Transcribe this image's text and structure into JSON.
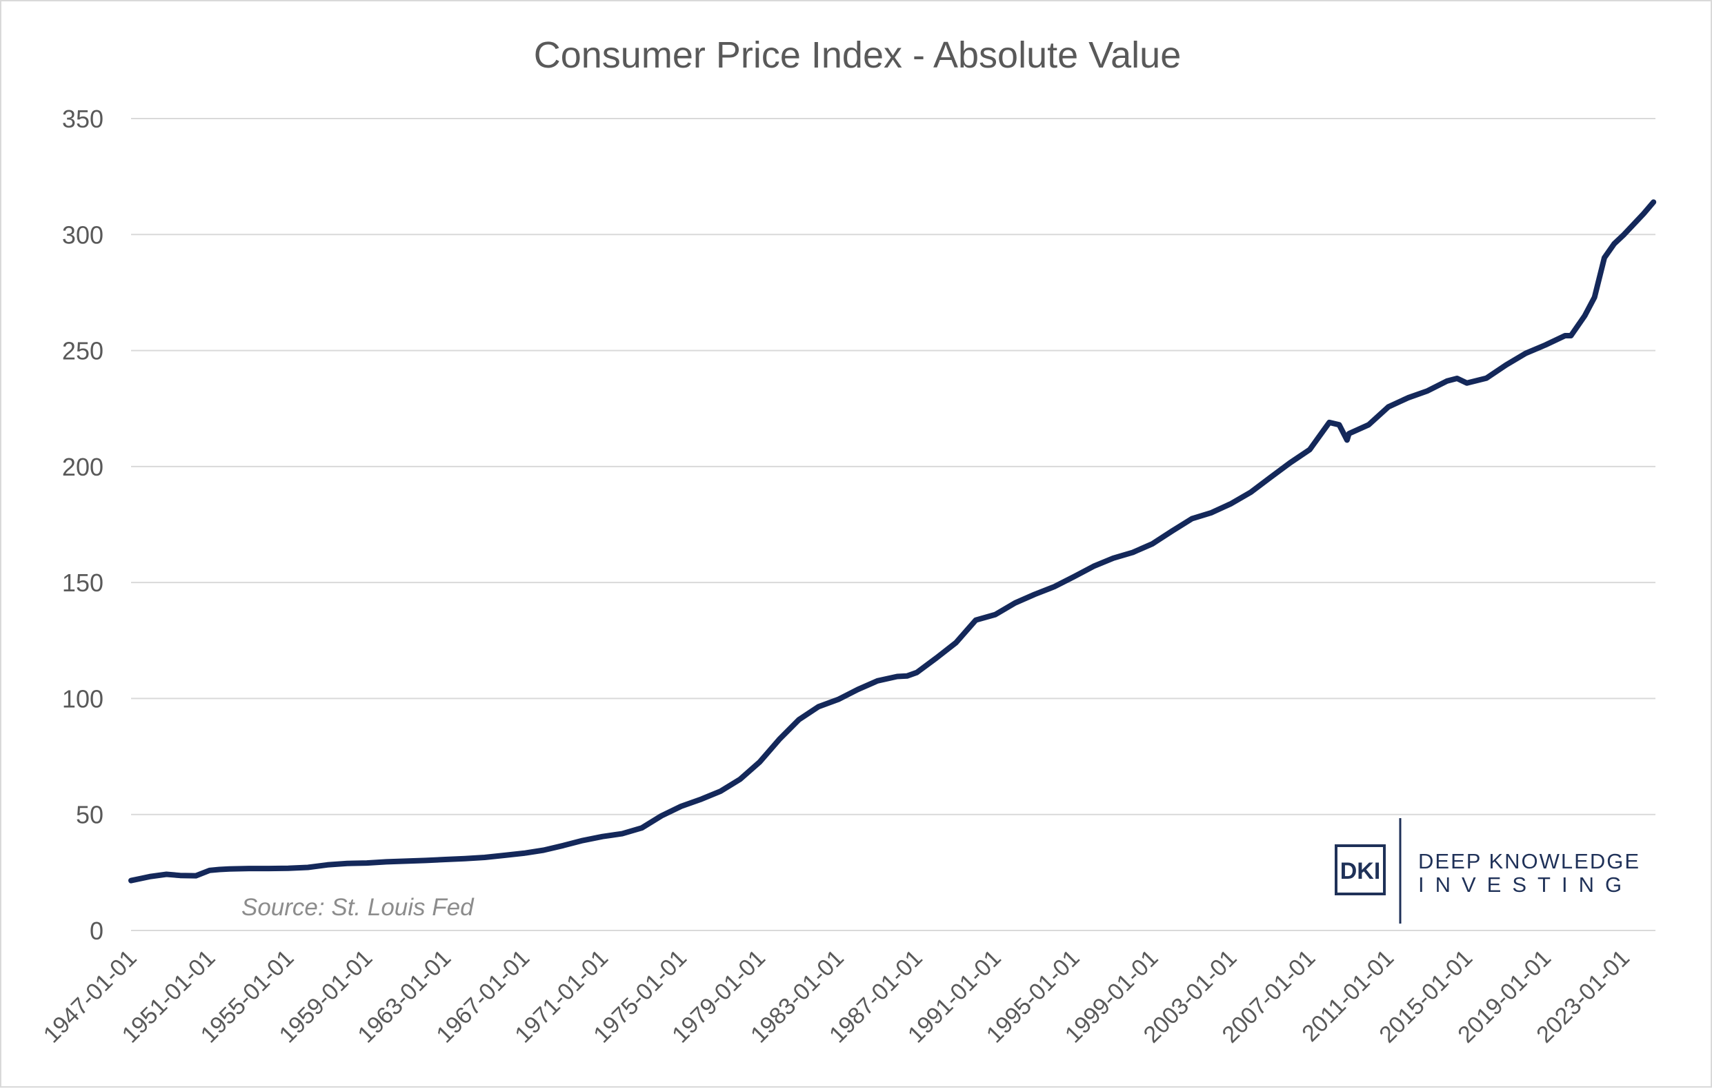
{
  "chart_data": {
    "type": "line",
    "title": "Consumer Price Index - Absolute Value",
    "xlabel": "",
    "ylabel": "",
    "ylim": [
      0,
      350
    ],
    "yticks": [
      0,
      50,
      100,
      150,
      200,
      250,
      300,
      350
    ],
    "xtick_labels": [
      "1947-01-01",
      "1951-01-01",
      "1955-01-01",
      "1959-01-01",
      "1963-01-01",
      "1967-01-01",
      "1971-01-01",
      "1975-01-01",
      "1979-01-01",
      "1983-01-01",
      "1987-01-01",
      "1991-01-01",
      "1995-01-01",
      "1999-01-01",
      "2003-01-01",
      "2007-01-01",
      "2011-01-01",
      "2015-01-01",
      "2019-01-01",
      "2023-01-01"
    ],
    "xlim": [
      1947.0,
      2024.6
    ],
    "grid": "horizontal",
    "line_color": "#14285a",
    "x": [
      1947.0,
      1948.0,
      1948.8,
      1949.5,
      1950.3,
      1951.0,
      1951.5,
      1952.0,
      1953.0,
      1954.0,
      1955.0,
      1956.0,
      1957.0,
      1958.0,
      1959.0,
      1960.0,
      1961.0,
      1962.0,
      1963.0,
      1964.0,
      1965.0,
      1966.0,
      1967.0,
      1968.0,
      1969.0,
      1970.0,
      1971.0,
      1972.0,
      1973.0,
      1974.0,
      1975.0,
      1976.0,
      1977.0,
      1978.0,
      1979.0,
      1980.0,
      1981.0,
      1982.0,
      1983.0,
      1984.0,
      1985.0,
      1986.0,
      1986.5,
      1987.0,
      1988.0,
      1989.0,
      1990.0,
      1991.0,
      1992.0,
      1993.0,
      1994.0,
      1995.0,
      1996.0,
      1997.0,
      1998.0,
      1999.0,
      2000.0,
      2001.0,
      2002.0,
      2003.0,
      2004.0,
      2005.0,
      2006.0,
      2007.0,
      2008.0,
      2008.5,
      2008.9,
      2009.0,
      2010.0,
      2011.0,
      2012.0,
      2013.0,
      2014.0,
      2014.5,
      2015.0,
      2016.0,
      2017.0,
      2018.0,
      2019.0,
      2020.0,
      2020.3,
      2021.0,
      2021.5,
      2022.0,
      2022.5,
      2023.0,
      2024.0,
      2024.5
    ],
    "values": [
      21.5,
      23.3,
      24.2,
      23.7,
      23.6,
      25.9,
      26.3,
      26.5,
      26.7,
      26.7,
      26.8,
      27.2,
      28.3,
      28.9,
      29.1,
      29.6,
      29.9,
      30.2,
      30.6,
      31.0,
      31.5,
      32.4,
      33.3,
      34.6,
      36.6,
      38.8,
      40.5,
      41.7,
      44.2,
      49.4,
      53.5,
      56.5,
      60.0,
      65.2,
      72.6,
      82.4,
      90.9,
      96.5,
      99.6,
      103.9,
      107.6,
      109.5,
      109.7,
      111.2,
      117.5,
      124.1,
      133.8,
      136.2,
      141.2,
      144.9,
      148.2,
      152.5,
      157.0,
      160.5,
      163.0,
      166.7,
      172.2,
      177.5,
      180.1,
      184.0,
      188.9,
      195.3,
      201.6,
      207.3,
      219.0,
      218.0,
      211.4,
      214.2,
      218.0,
      225.7,
      229.6,
      232.6,
      236.9,
      238.0,
      236.0,
      238.1,
      243.8,
      248.8,
      252.4,
      256.4,
      256.4,
      265.0,
      273.0,
      290.0,
      296.0,
      300.0,
      309.0,
      314.0
    ]
  },
  "source_note": "Source: St. Louis Fed",
  "logo": {
    "mark": "DKI",
    "line1": "DEEP KNOWLEDGE",
    "line2": "INVESTING"
  }
}
